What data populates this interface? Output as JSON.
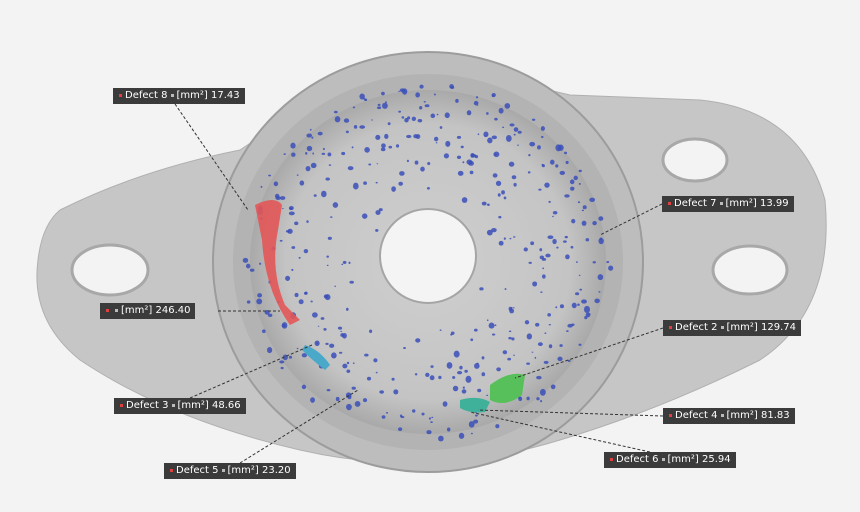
{
  "labels": [
    {
      "name": "Defect 8",
      "unit": "[mm²]",
      "value": "17.43"
    },
    {
      "unit": "[mm²]",
      "value": "246.40"
    },
    {
      "name": "Defect 3",
      "unit": "[mm²]",
      "value": "48.66"
    },
    {
      "name": "Defect 5",
      "unit": "[mm²]",
      "value": "23.20"
    },
    {
      "name": "Defect 7",
      "unit": "[mm²]",
      "value": "13.99"
    },
    {
      "name": "Defect 2",
      "unit": "[mm²]",
      "value": "129.74"
    },
    {
      "name": "Defect 4",
      "unit": "[mm²]",
      "value": "81.83"
    },
    {
      "name": "Defect 6",
      "unit": "[mm²]",
      "value": "25.94"
    }
  ]
}
